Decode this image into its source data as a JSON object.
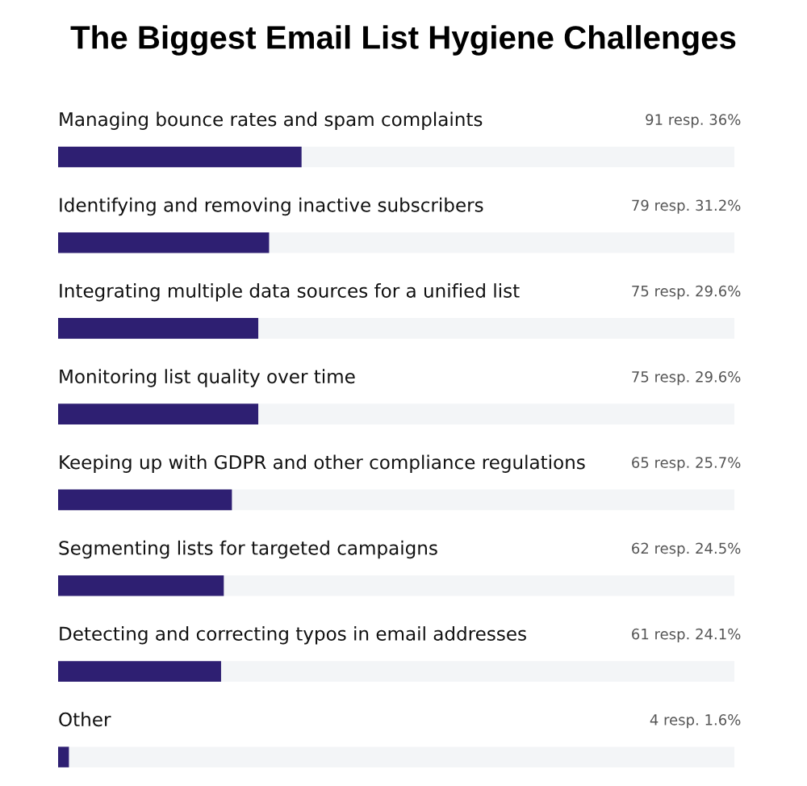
{
  "chart_data": {
    "type": "bar",
    "orientation": "horizontal",
    "title": "The Biggest Email List Hygiene Challenges",
    "categories": [
      "Managing bounce rates and spam complaints",
      "Identifying and removing inactive subscribers",
      "Integrating multiple data sources for a unified list",
      "Monitoring list quality over time",
      "Keeping up with GDPR and other compliance regulations",
      "Segmenting lists for targeted campaigns",
      "Detecting and correcting typos in email addresses",
      "Other"
    ],
    "values": [
      36,
      31.2,
      29.6,
      29.6,
      25.7,
      24.5,
      24.1,
      1.6
    ],
    "value_labels": [
      "91 resp. 36%",
      "79 resp. 31.2%",
      "75 resp. 29.6%",
      "75 resp. 29.6%",
      "65 resp. 25.7%",
      "62 resp. 24.5%",
      "61 resp. 24.1%",
      "4 resp. 1.6%"
    ],
    "color": "#2e1f72",
    "xlim": [
      0,
      100
    ]
  }
}
